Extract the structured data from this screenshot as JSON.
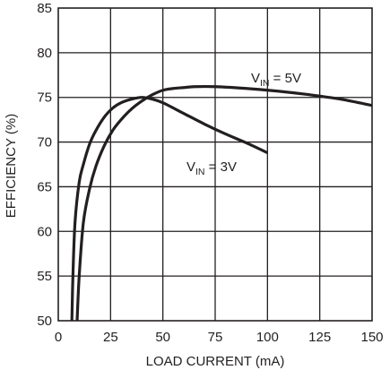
{
  "chart_data": {
    "type": "line",
    "xlabel": "LOAD CURRENT (mA)",
    "ylabel": "EFFICIENCY (%)",
    "xlim": [
      0,
      150
    ],
    "ylim": [
      50,
      85
    ],
    "x_ticks": [
      0,
      25,
      50,
      75,
      100,
      125,
      150
    ],
    "y_ticks": [
      50,
      55,
      60,
      65,
      70,
      75,
      80,
      85
    ],
    "grid": true,
    "series": [
      {
        "name": "VIN = 3V",
        "label_main": "V",
        "label_sub": "IN",
        "label_rest": " = 3V",
        "x": [
          6.5,
          7,
          8,
          10,
          12,
          15,
          18,
          22,
          26,
          30,
          35,
          40,
          45,
          50,
          60,
          70,
          80,
          90,
          100
        ],
        "y": [
          50,
          55,
          61,
          65.5,
          67.5,
          69.8,
          71.3,
          72.8,
          73.8,
          74.4,
          74.8,
          75,
          74.8,
          74.4,
          73.2,
          72,
          70.9,
          69.9,
          68.8
        ]
      },
      {
        "name": "VIN = 5V",
        "label_main": "V",
        "label_sub": "IN",
        "label_rest": " = 5V",
        "x": [
          9,
          10,
          12,
          15,
          18,
          22,
          26,
          30,
          35,
          40,
          45,
          50,
          55,
          60,
          65,
          75,
          90,
          105,
          120,
          135,
          150
        ],
        "y": [
          50,
          55,
          61,
          64.8,
          67.3,
          69.6,
          71.3,
          72.5,
          73.7,
          74.6,
          75.3,
          75.8,
          76,
          76.1,
          76.2,
          76.2,
          76,
          75.7,
          75.3,
          74.8,
          74.1
        ]
      }
    ]
  }
}
